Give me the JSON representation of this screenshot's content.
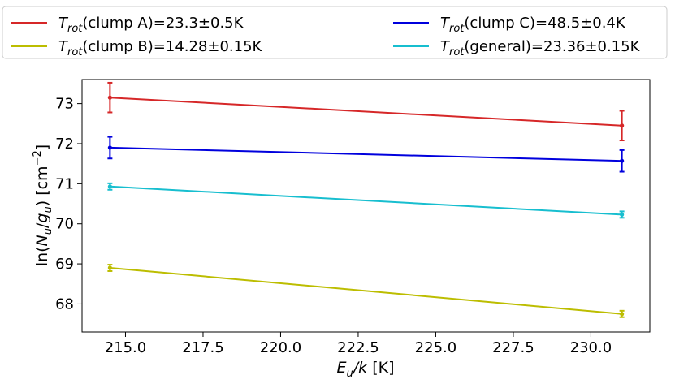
{
  "chart_data": {
    "type": "line",
    "xlabel_main": "E",
    "xlabel_sub": "u",
    "xlabel_tail": "/k [K]",
    "ylabel": "ln(N_u/g_u) [cm^-2]",
    "ylabel_parts": {
      "pre": "ln(",
      "N": "N",
      "u1": "u",
      "slash": "/",
      "g": "g",
      "u2": "u",
      "post": ") [cm",
      "exp": "−2",
      "close": "]"
    },
    "xlim": [
      213.6,
      231.9
    ],
    "ylim": [
      67.3,
      73.6
    ],
    "xticks": [
      215.0,
      217.5,
      220.0,
      222.5,
      225.0,
      227.5,
      230.0
    ],
    "xtick_labels": [
      "215.0",
      "217.5",
      "220.0",
      "222.5",
      "225.0",
      "227.5",
      "230.0"
    ],
    "yticks": [
      68,
      69,
      70,
      71,
      72,
      73
    ],
    "ytick_labels": [
      "68",
      "69",
      "70",
      "71",
      "72",
      "73"
    ],
    "legend_placement": "top, two columns, outside plot",
    "series": [
      {
        "id": "clumpA",
        "name_sub": "rot",
        "name_rest": "(clump A)=23.3±0.5K",
        "color": "#d62728",
        "points": [
          {
            "x": 214.5,
            "y": 73.15,
            "err": 0.37
          },
          {
            "x": 231.0,
            "y": 72.45,
            "err": 0.37
          }
        ]
      },
      {
        "id": "clumpB",
        "name_sub": "rot",
        "name_rest": "(clump B)=14.28±0.15K",
        "color": "#bcbd00",
        "points": [
          {
            "x": 214.5,
            "y": 68.9,
            "err": 0.08
          },
          {
            "x": 231.0,
            "y": 67.75,
            "err": 0.08
          }
        ]
      },
      {
        "id": "clumpC",
        "name_sub": "rot",
        "name_rest": "(clump C)=48.5±0.4K",
        "color": "#0000dd",
        "points": [
          {
            "x": 214.5,
            "y": 71.9,
            "err": 0.27
          },
          {
            "x": 231.0,
            "y": 71.57,
            "err": 0.27
          }
        ]
      },
      {
        "id": "general",
        "name_sub": "rot",
        "name_rest": "(general)=23.36±0.15K",
        "color": "#17becf",
        "points": [
          {
            "x": 214.5,
            "y": 70.93,
            "err": 0.08
          },
          {
            "x": 231.0,
            "y": 70.23,
            "err": 0.08
          }
        ]
      }
    ],
    "legend_T": "T"
  }
}
